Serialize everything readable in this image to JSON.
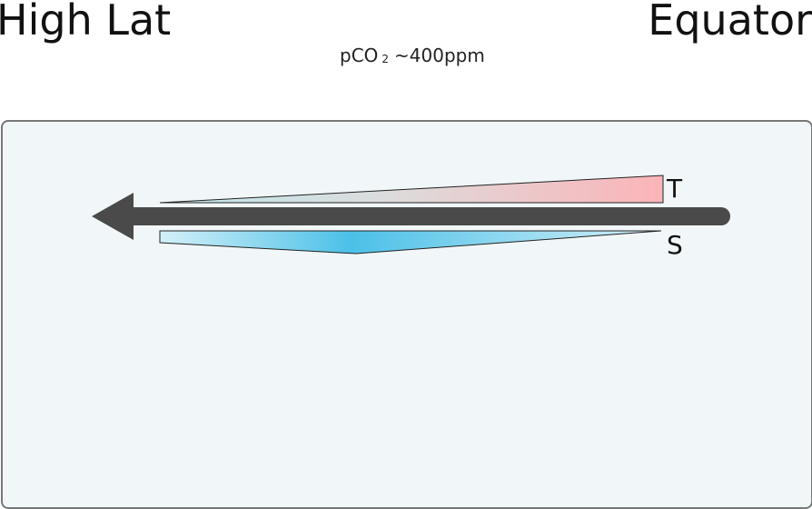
{
  "header": {
    "left_label": "High Lat",
    "right_label": "Equator"
  },
  "pco2": {
    "prefix": "pCO",
    "subscript": "2",
    "value": "~400ppm"
  },
  "gradients": {
    "temperature_label": "T",
    "salinity_label": "S"
  },
  "colors": {
    "arrow": "#4a4a4a",
    "temperature_warm": "#fbb4b8",
    "temperature_cold": "#bfe8ee",
    "salinity_high": "#4cc0e8",
    "salinity_low": "#d4f0f8",
    "ocean_fill": "#f1f7f9",
    "ocean_border": "#777777"
  }
}
